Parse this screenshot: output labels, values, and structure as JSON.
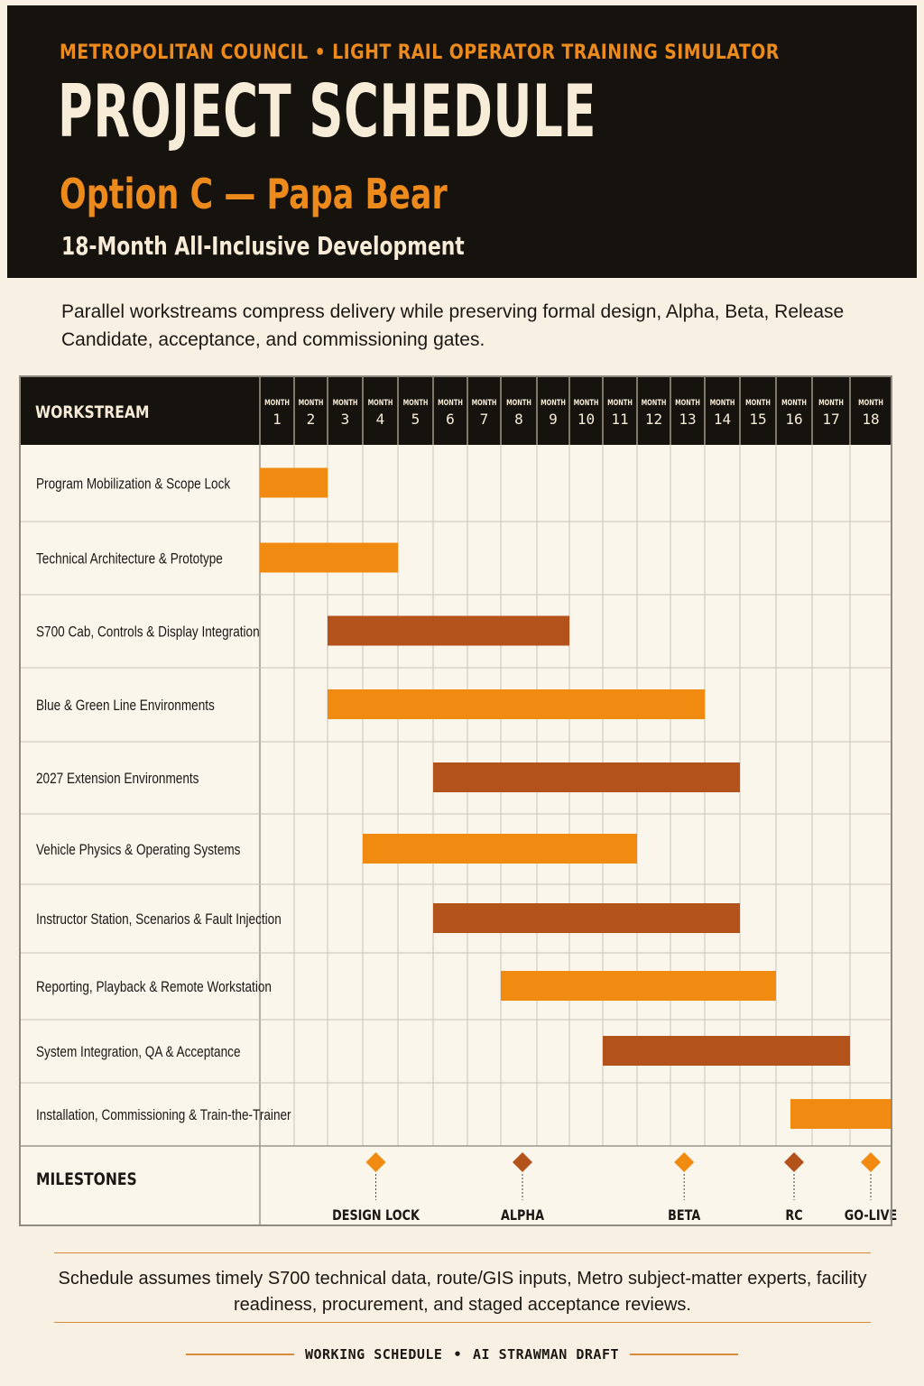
{
  "header": {
    "kicker": "METROPOLITAN COUNCIL • LIGHT RAIL OPERATOR TRAINING SIMULATOR",
    "title": "PROJECT SCHEDULE",
    "subtitle": "Option C — Papa Bear",
    "tagline": "18-Month All-Inclusive Development"
  },
  "intro": "Parallel workstreams compress delivery while preserving formal design, Alpha, Beta, Release Candidate, acceptance, and commissioning gates.",
  "colors": {
    "background": "#f8f1e3",
    "header": "#16120e",
    "orange": "#f08a10",
    "rust": "#b4521c",
    "grid": "#c9c2b6"
  },
  "chart_data": {
    "type": "gantt",
    "column_header": "WORKSTREAM",
    "month_label": "MONTH",
    "months": [
      "1",
      "2",
      "3",
      "4",
      "5",
      "6",
      "7",
      "8",
      "9",
      "10",
      "11",
      "12",
      "13",
      "14",
      "15",
      "16",
      "17",
      "18"
    ],
    "tasks": [
      {
        "name": "Program Mobilization & Scope Lock",
        "start": 1,
        "end": 2,
        "color": "orange"
      },
      {
        "name": "Technical Architecture & Prototype",
        "start": 1,
        "end": 4,
        "color": "orange"
      },
      {
        "name": "S700 Cab, Controls & Display Integration",
        "start": 3,
        "end": 9,
        "color": "rust"
      },
      {
        "name": "Blue & Green Line Environments",
        "start": 3,
        "end": 13,
        "color": "orange"
      },
      {
        "name": "2027 Extension Environments",
        "start": 6,
        "end": 14,
        "color": "rust"
      },
      {
        "name": "Vehicle Physics & Operating Systems",
        "start": 4,
        "end": 11,
        "color": "orange"
      },
      {
        "name": "Instructor Station, Scenarios & Fault Injection",
        "start": 6,
        "end": 14,
        "color": "rust"
      },
      {
        "name": "Reporting, Playback & Remote Workstation",
        "start": 8,
        "end": 15,
        "color": "orange"
      },
      {
        "name": "System Integration, QA & Acceptance",
        "start": 11,
        "end": 17,
        "color": "rust"
      },
      {
        "name": "Installation, Commissioning & Train-the-Trainer",
        "start": 16.4,
        "end": 18,
        "color": "orange"
      }
    ],
    "milestones_label": "MILESTONES",
    "milestones": [
      {
        "label": "DESIGN LOCK",
        "month": 4,
        "color": "orange"
      },
      {
        "label": "ALPHA",
        "month": 8.6,
        "color": "rust"
      },
      {
        "label": "BETA",
        "month": 13.4,
        "color": "orange"
      },
      {
        "label": "RC",
        "month": 16.5,
        "color": "rust"
      },
      {
        "label": "GO-LIVE",
        "month": 18,
        "color": "orange"
      }
    ]
  },
  "footnote": "Schedule assumes timely S700 technical data, route/GIS inputs, Metro subject-matter experts, facility readiness, procurement, and staged acceptance reviews.",
  "footer": {
    "left": "WORKING SCHEDULE",
    "separator": "•",
    "right": "AI STRAWMAN DRAFT"
  }
}
